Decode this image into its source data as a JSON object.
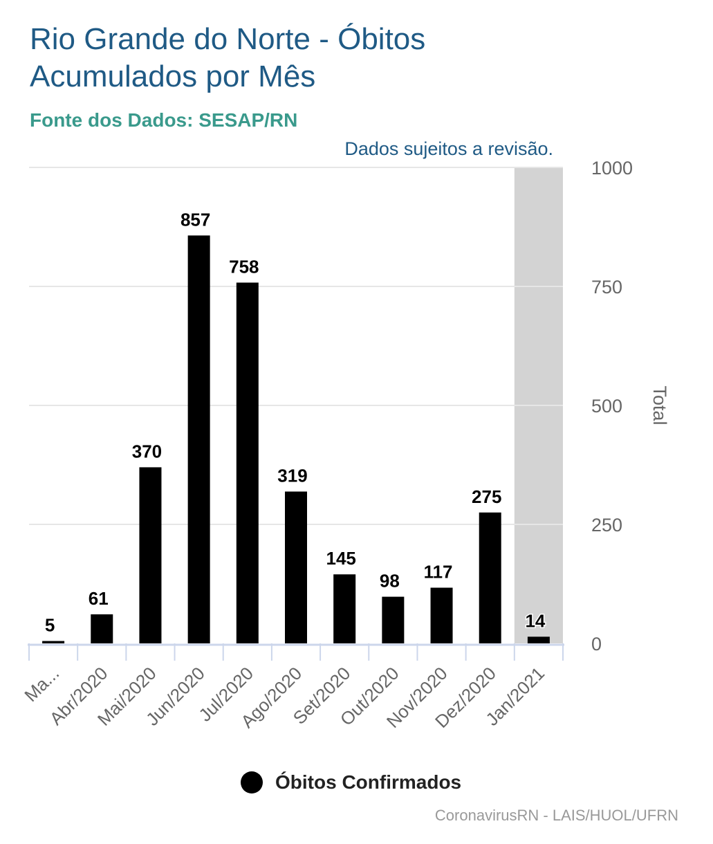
{
  "header": {
    "title": "Rio Grande do Norte - Óbitos Acumulados por Mês",
    "source": "Fonte dos Dados: SESAP/RN",
    "note": "Dados sujeitos a revisão."
  },
  "footer": {
    "credit": "CoronavirusRN - LAIS/HUOL/UFRN"
  },
  "chart_data": {
    "type": "bar",
    "title": "Rio Grande do Norte - Óbitos Acumulados por Mês",
    "categories": [
      "Ma...",
      "Abr/2020",
      "Mai/2020",
      "Jun/2020",
      "Jul/2020",
      "Ago/2020",
      "Set/2020",
      "Out/2020",
      "Nov/2020",
      "Dez/2020",
      "Jan/2021"
    ],
    "series": [
      {
        "name": "Óbitos Confirmados",
        "values": [
          5,
          61,
          370,
          857,
          758,
          319,
          145,
          98,
          117,
          275,
          14
        ],
        "color": "#000000"
      }
    ],
    "ylabel": "Total",
    "ylim": [
      0,
      1000
    ],
    "yticks": [
      0,
      250,
      500,
      750,
      1000
    ],
    "highlight_category": "Jan/2021",
    "highlight_color": "#d3d3d3",
    "grid": true,
    "legend": "bottom"
  }
}
